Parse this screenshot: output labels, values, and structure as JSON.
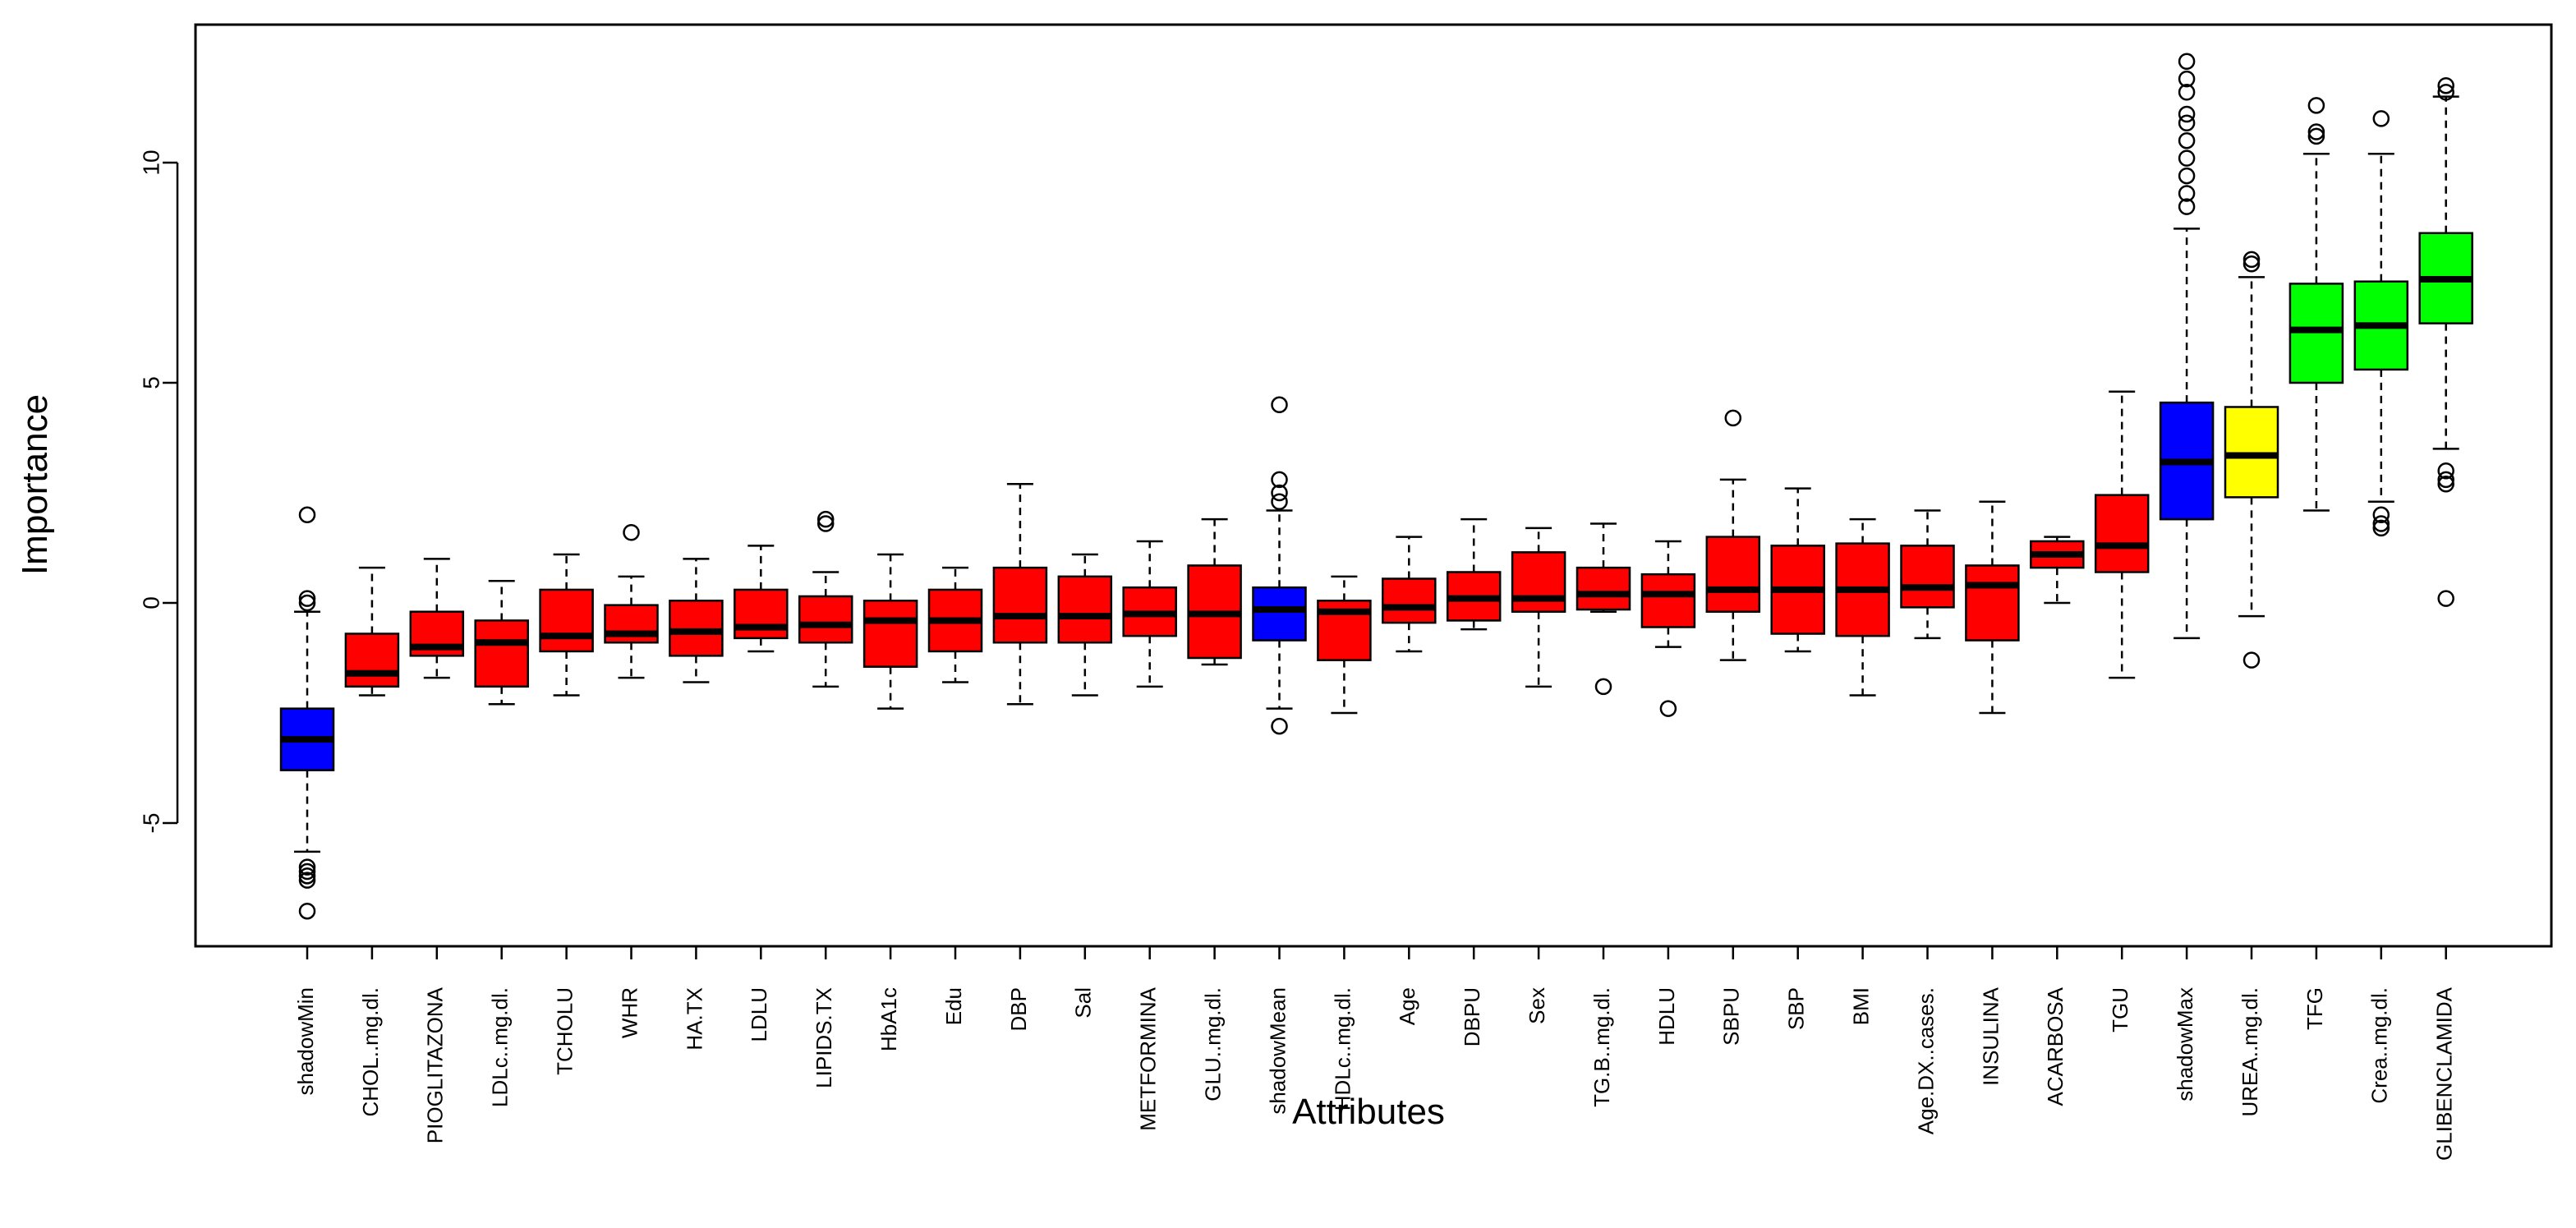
{
  "chart_data": {
    "type": "boxplot",
    "title": "",
    "xlabel": "Attributes",
    "ylabel": "Importance",
    "ylim": [
      -7.6,
      13.2
    ],
    "yticks": [
      -5,
      0,
      5,
      10
    ],
    "grid": false,
    "colors": {
      "rejected": "#ff0000",
      "shadow": "#0000ff",
      "tentative": "#ffff00",
      "confirmed": "#00ff00",
      "frame": "#000000",
      "median": "#000000"
    },
    "boxes": [
      {
        "label": "shadowMin",
        "status": "shadow",
        "whislo": -5.65,
        "q1": -3.8,
        "med": -3.1,
        "q3": -2.4,
        "whishi": -0.2,
        "fliers": [
          2.0,
          0.1,
          0.0,
          -6.0,
          -6.1,
          -6.2,
          -6.3,
          -7.0
        ]
      },
      {
        "label": "CHOL..mg.dl.",
        "status": "rejected",
        "whislo": -2.1,
        "q1": -1.9,
        "med": -1.6,
        "q3": -0.7,
        "whishi": 0.8,
        "fliers": []
      },
      {
        "label": "PIOGLITAZONA",
        "status": "rejected",
        "whislo": -1.7,
        "q1": -1.2,
        "med": -1.0,
        "q3": -0.2,
        "whishi": 1.0,
        "fliers": []
      },
      {
        "label": "LDLc..mg.dl.",
        "status": "rejected",
        "whislo": -2.3,
        "q1": -1.9,
        "med": -0.9,
        "q3": -0.4,
        "whishi": 0.5,
        "fliers": []
      },
      {
        "label": "TCHOLU",
        "status": "rejected",
        "whislo": -2.1,
        "q1": -1.1,
        "med": -0.75,
        "q3": 0.3,
        "whishi": 1.1,
        "fliers": []
      },
      {
        "label": "WHR",
        "status": "rejected",
        "whislo": -1.7,
        "q1": -0.9,
        "med": -0.7,
        "q3": -0.05,
        "whishi": 0.6,
        "fliers": [
          1.6
        ]
      },
      {
        "label": "HA.TX",
        "status": "rejected",
        "whislo": -1.8,
        "q1": -1.2,
        "med": -0.65,
        "q3": 0.05,
        "whishi": 1.0,
        "fliers": []
      },
      {
        "label": "LDLU",
        "status": "rejected",
        "whislo": -1.1,
        "q1": -0.8,
        "med": -0.55,
        "q3": 0.3,
        "whishi": 1.3,
        "fliers": []
      },
      {
        "label": "LIPIDS.TX",
        "status": "rejected",
        "whislo": -1.9,
        "q1": -0.9,
        "med": -0.5,
        "q3": 0.15,
        "whishi": 0.7,
        "fliers": [
          1.8,
          1.9
        ]
      },
      {
        "label": "HbA1c",
        "status": "rejected",
        "whislo": -2.4,
        "q1": -1.45,
        "med": -0.4,
        "q3": 0.05,
        "whishi": 1.1,
        "fliers": []
      },
      {
        "label": "Edu",
        "status": "rejected",
        "whislo": -1.8,
        "q1": -1.1,
        "med": -0.4,
        "q3": 0.3,
        "whishi": 0.8,
        "fliers": []
      },
      {
        "label": "DBP",
        "status": "rejected",
        "whislo": -2.3,
        "q1": -0.9,
        "med": -0.3,
        "q3": 0.8,
        "whishi": 2.7,
        "fliers": []
      },
      {
        "label": "Sal",
        "status": "rejected",
        "whislo": -2.1,
        "q1": -0.9,
        "med": -0.3,
        "q3": 0.6,
        "whishi": 1.1,
        "fliers": []
      },
      {
        "label": "METFORMINA",
        "status": "rejected",
        "whislo": -1.9,
        "q1": -0.75,
        "med": -0.25,
        "q3": 0.35,
        "whishi": 1.4,
        "fliers": []
      },
      {
        "label": "GLU..mg.dl.",
        "status": "rejected",
        "whislo": -1.4,
        "q1": -1.25,
        "med": -0.25,
        "q3": 0.85,
        "whishi": 1.9,
        "fliers": []
      },
      {
        "label": "shadowMean",
        "status": "shadow",
        "whislo": -2.4,
        "q1": -0.85,
        "med": -0.15,
        "q3": 0.35,
        "whishi": 2.1,
        "fliers": [
          4.5,
          2.8,
          2.5,
          2.3,
          -2.8
        ]
      },
      {
        "label": "HDLc..mg.dl.",
        "status": "rejected",
        "whislo": -2.5,
        "q1": -1.3,
        "med": -0.2,
        "q3": 0.05,
        "whishi": 0.6,
        "fliers": []
      },
      {
        "label": "Age",
        "status": "rejected",
        "whislo": -1.1,
        "q1": -0.45,
        "med": -0.1,
        "q3": 0.55,
        "whishi": 1.5,
        "fliers": []
      },
      {
        "label": "DBPU",
        "status": "rejected",
        "whislo": -0.6,
        "q1": -0.4,
        "med": 0.1,
        "q3": 0.7,
        "whishi": 1.9,
        "fliers": []
      },
      {
        "label": "Sex",
        "status": "rejected",
        "whislo": -1.9,
        "q1": -0.2,
        "med": 0.1,
        "q3": 1.15,
        "whishi": 1.7,
        "fliers": []
      },
      {
        "label": "TG.B..mg.dl.",
        "status": "rejected",
        "whislo": -0.2,
        "q1": -0.15,
        "med": 0.2,
        "q3": 0.8,
        "whishi": 1.8,
        "fliers": [
          -1.9
        ]
      },
      {
        "label": "HDLU",
        "status": "rejected",
        "whislo": -1.0,
        "q1": -0.55,
        "med": 0.2,
        "q3": 0.65,
        "whishi": 1.4,
        "fliers": [
          -2.4
        ]
      },
      {
        "label": "SBPU",
        "status": "rejected",
        "whislo": -1.3,
        "q1": -0.2,
        "med": 0.3,
        "q3": 1.5,
        "whishi": 2.8,
        "fliers": [
          4.2
        ]
      },
      {
        "label": "SBP",
        "status": "rejected",
        "whislo": -1.1,
        "q1": -0.7,
        "med": 0.3,
        "q3": 1.3,
        "whishi": 2.6,
        "fliers": []
      },
      {
        "label": "BMI",
        "status": "rejected",
        "whislo": -2.1,
        "q1": -0.75,
        "med": 0.3,
        "q3": 1.35,
        "whishi": 1.9,
        "fliers": []
      },
      {
        "label": "Age.DX..cases.",
        "status": "rejected",
        "whislo": -0.8,
        "q1": -0.1,
        "med": 0.35,
        "q3": 1.3,
        "whishi": 2.1,
        "fliers": []
      },
      {
        "label": "INSULINA",
        "status": "rejected",
        "whislo": -2.5,
        "q1": -0.85,
        "med": 0.4,
        "q3": 0.85,
        "whishi": 2.3,
        "fliers": []
      },
      {
        "label": "ACARBOSA",
        "status": "rejected",
        "whislo": 0.0,
        "q1": 0.8,
        "med": 1.1,
        "q3": 1.4,
        "whishi": 1.5,
        "fliers": []
      },
      {
        "label": "TGU",
        "status": "rejected",
        "whislo": -1.7,
        "q1": 0.7,
        "med": 1.3,
        "q3": 2.45,
        "whishi": 4.8,
        "fliers": []
      },
      {
        "label": "shadowMax",
        "status": "shadow",
        "whislo": -0.8,
        "q1": 1.9,
        "med": 3.2,
        "q3": 4.55,
        "whishi": 8.5,
        "fliers": [
          12.3,
          11.9,
          11.6,
          11.1,
          10.9,
          10.5,
          10.1,
          9.7,
          9.3,
          9.0
        ]
      },
      {
        "label": "UREA..mg.dl.",
        "status": "tentative",
        "whislo": -0.3,
        "q1": 2.4,
        "med": 3.35,
        "q3": 4.45,
        "whishi": 7.4,
        "fliers": [
          7.7,
          7.8,
          -1.3
        ]
      },
      {
        "label": "TFG",
        "status": "confirmed",
        "whislo": 2.1,
        "q1": 5.0,
        "med": 6.2,
        "q3": 7.25,
        "whishi": 10.2,
        "fliers": [
          11.3,
          10.7,
          10.6
        ]
      },
      {
        "label": "Crea..mg.dl.",
        "status": "confirmed",
        "whislo": 2.3,
        "q1": 5.3,
        "med": 6.3,
        "q3": 7.3,
        "whishi": 10.2,
        "fliers": [
          11.0,
          2.0,
          1.8,
          1.7
        ]
      },
      {
        "label": "GLIBENCLAMIDA",
        "status": "confirmed",
        "whislo": 3.5,
        "q1": 6.35,
        "med": 7.35,
        "q3": 8.4,
        "whishi": 11.5,
        "fliers": [
          11.75,
          11.6,
          3.0,
          2.8,
          2.7,
          0.1
        ]
      }
    ]
  }
}
